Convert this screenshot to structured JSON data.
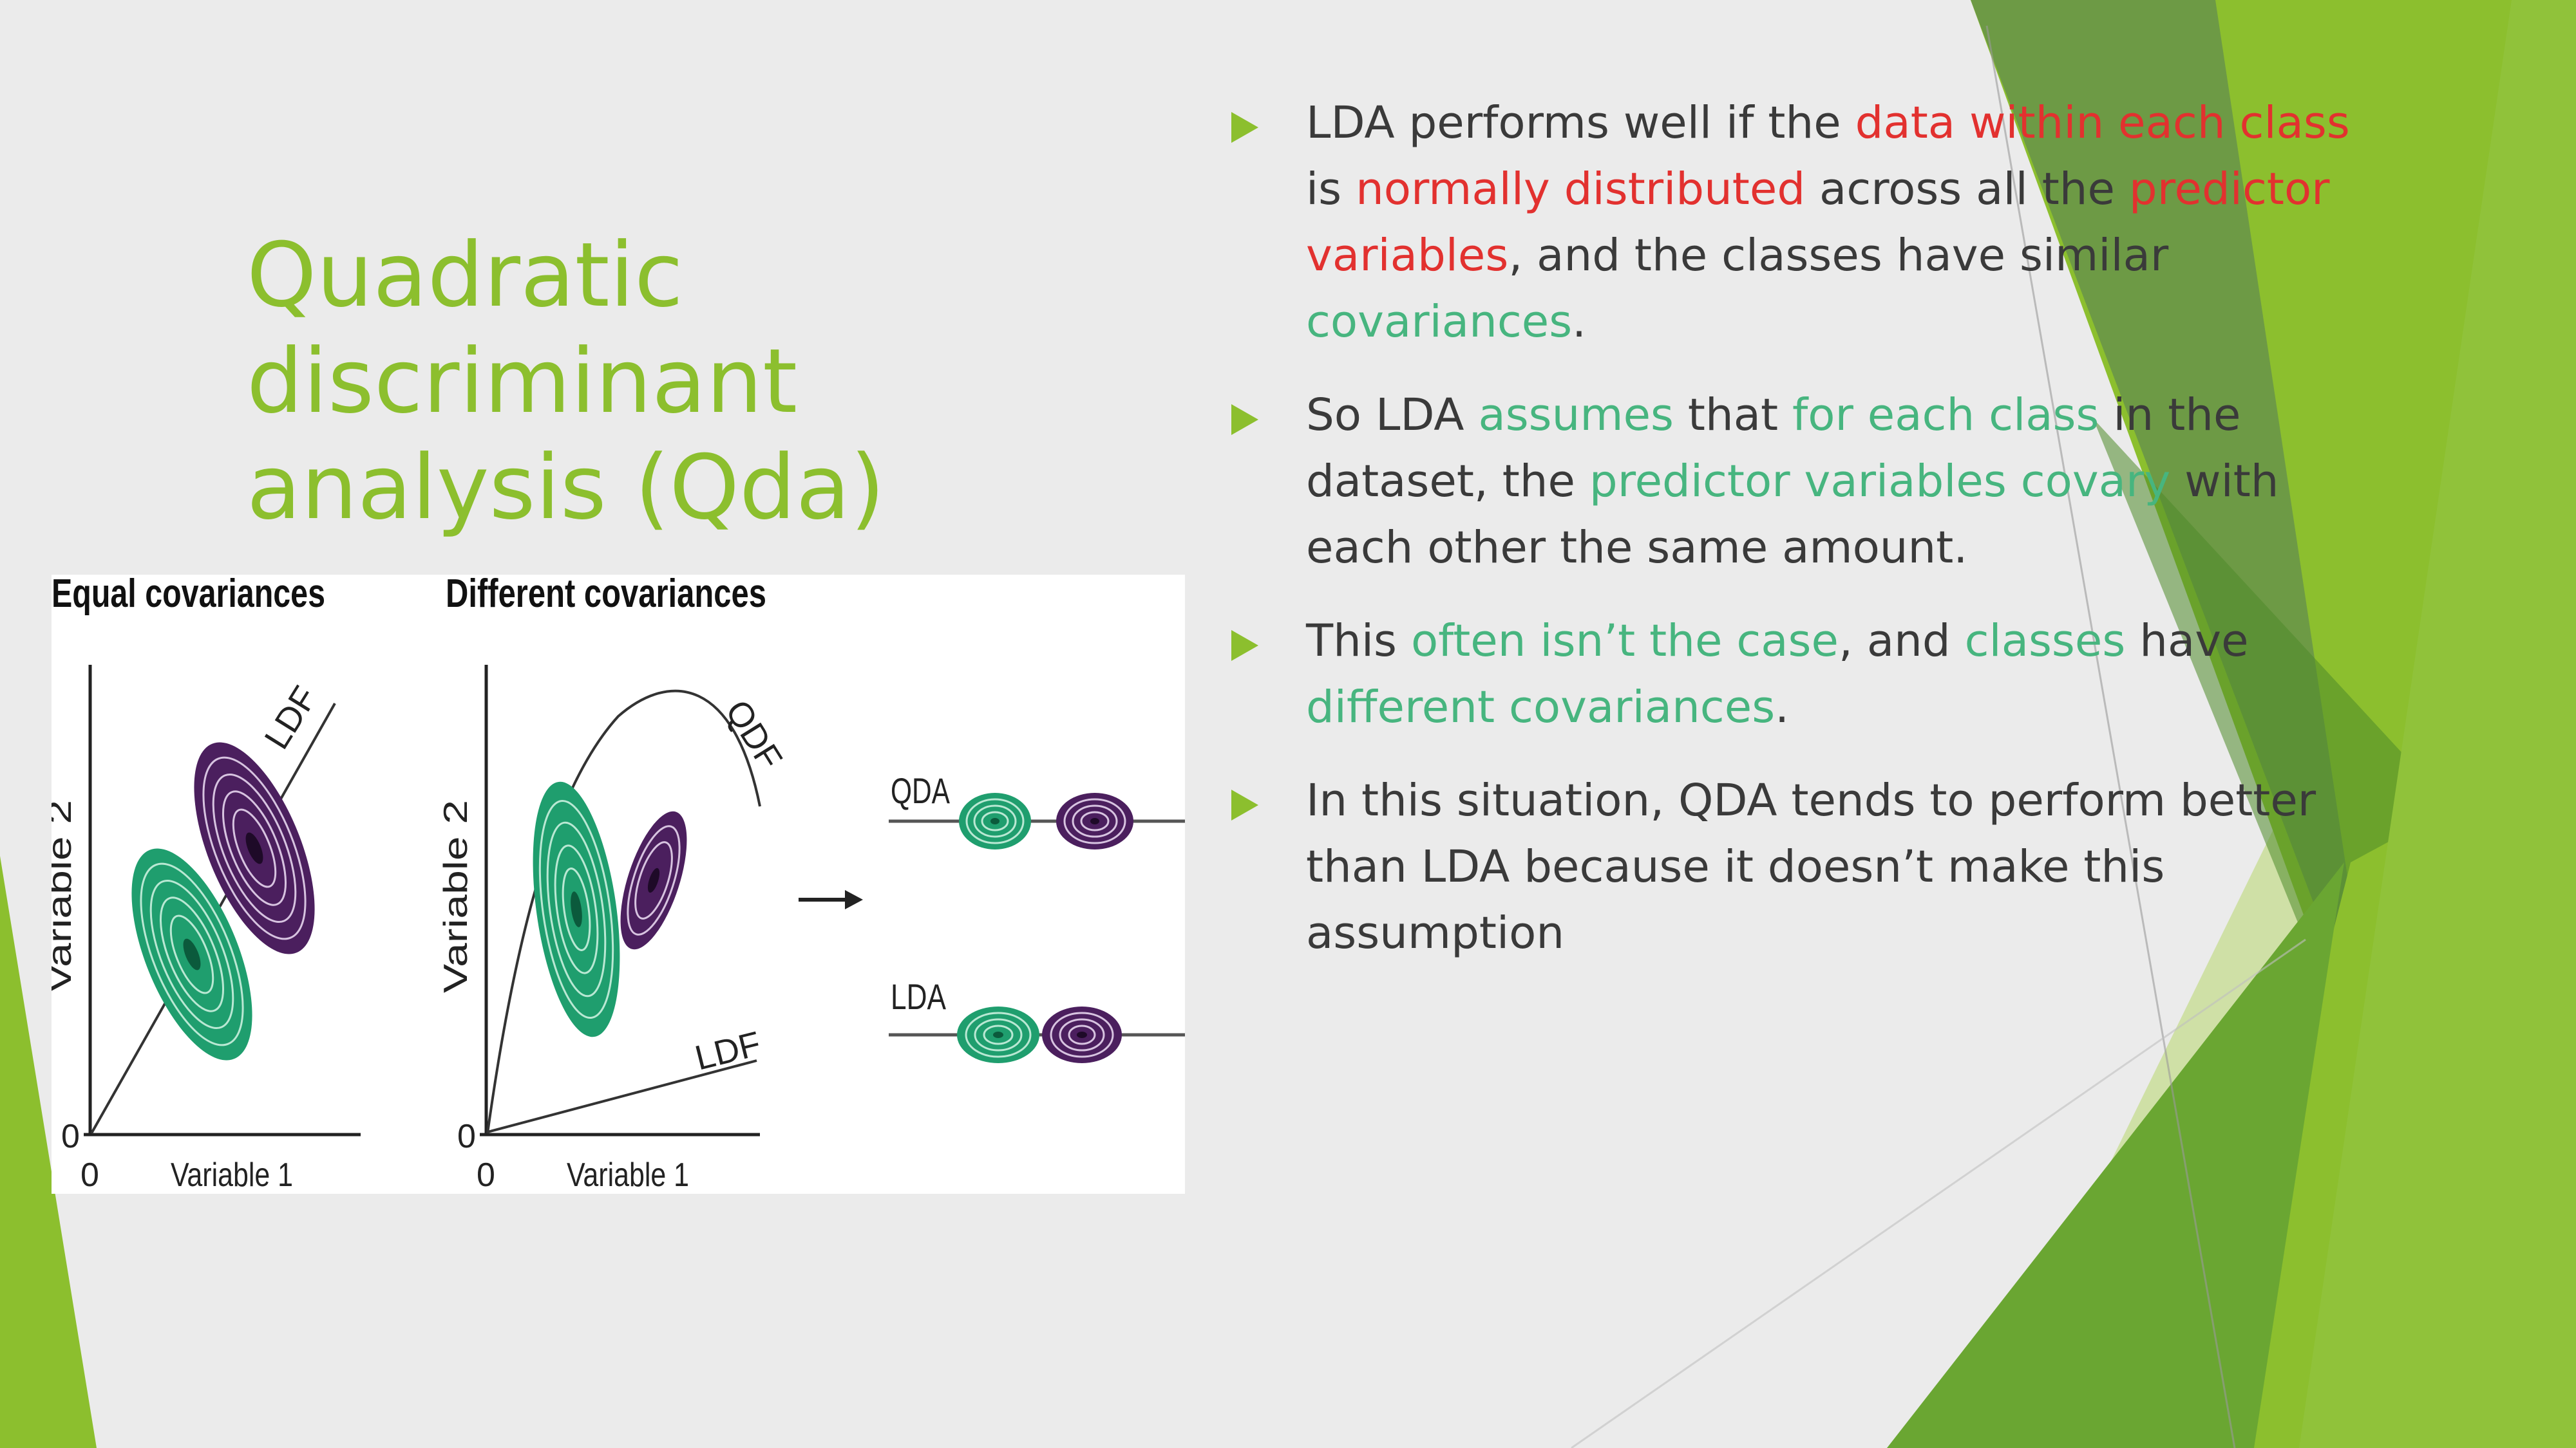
{
  "slide": {
    "title_line1": "Quadratic discriminant",
    "title_line2": "analysis (Qda)",
    "colors": {
      "background": "#ebebeb",
      "accent": "#8cbf2e",
      "highlight_red": "#e2312f",
      "highlight_green": "#47b57f",
      "body_text": "#3a3a3a"
    }
  },
  "figure": {
    "panel1_title": "Equal covariances",
    "panel2_title": "Different covariances",
    "y_axis_label": "Variable 2",
    "x_axis_label": "Variable 1",
    "origin_label": "0",
    "ldf_label": "LDF",
    "qdf_label": "QDF",
    "qda_label": "QDA",
    "lda_label": "LDA",
    "arrow_icon": "right-arrow-icon",
    "class_colors": [
      "#1f9e6e",
      "#4b1f5e"
    ]
  },
  "bullets": [
    {
      "segments": [
        {
          "text": "LDA performs well if the ",
          "style": "normal"
        },
        {
          "text": "data within each class",
          "style": "red"
        },
        {
          "text": " is ",
          "style": "normal"
        },
        {
          "text": "normally distributed",
          "style": "red"
        },
        {
          "text": " across all the ",
          "style": "normal"
        },
        {
          "text": "predictor variables",
          "style": "red"
        },
        {
          "text": ", and the classes have similar ",
          "style": "normal"
        },
        {
          "text": "covariances",
          "style": "green"
        },
        {
          "text": ".",
          "style": "normal"
        }
      ]
    },
    {
      "segments": [
        {
          "text": "So LDA ",
          "style": "normal"
        },
        {
          "text": "assumes",
          "style": "green"
        },
        {
          "text": " that ",
          "style": "normal"
        },
        {
          "text": "for each class",
          "style": "green"
        },
        {
          "text": " in the dataset, the ",
          "style": "normal"
        },
        {
          "text": "predictor variables covary",
          "style": "green"
        },
        {
          "text": " with each other the same amount.",
          "style": "normal"
        }
      ]
    },
    {
      "segments": [
        {
          "text": "This ",
          "style": "normal"
        },
        {
          "text": "often isn’t the case",
          "style": "green"
        },
        {
          "text": ", and ",
          "style": "normal"
        },
        {
          "text": "classes",
          "style": "green"
        },
        {
          "text": " have ",
          "style": "normal"
        },
        {
          "text": "different covariances",
          "style": "green"
        },
        {
          "text": ".",
          "style": "normal"
        }
      ]
    },
    {
      "segments": [
        {
          "text": "In this situation, QDA tends to perform better than LDA because it doesn’t make this assumption",
          "style": "normal"
        }
      ]
    }
  ]
}
